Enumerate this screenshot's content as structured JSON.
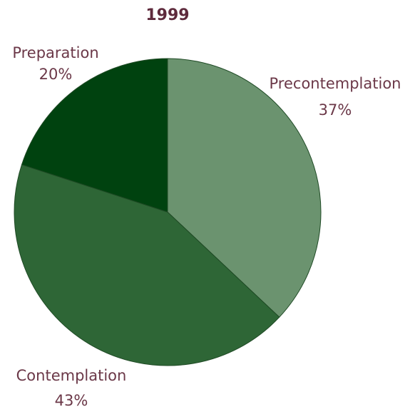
{
  "chart_data": {
    "type": "pie",
    "title": "1999",
    "categories": [
      "Precontemplation",
      "Contemplation",
      "Preparation"
    ],
    "values": [
      37,
      43,
      20
    ],
    "value_labels": [
      "37%",
      "43%",
      "20%"
    ],
    "colors": [
      "#6b936f",
      "#2e6636",
      "#00420f"
    ]
  }
}
